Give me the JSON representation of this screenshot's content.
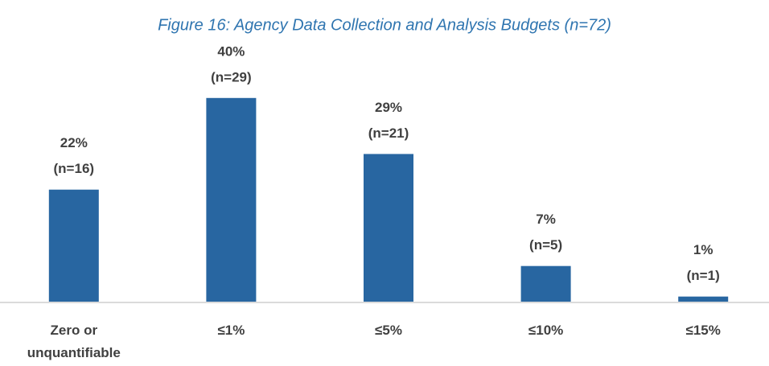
{
  "chart_data": {
    "type": "bar",
    "title": "Figure 16: Agency Data Collection and Analysis Budgets (n=72)",
    "categories": [
      "Zero or unquantifiable",
      "≤1%",
      "≤5%",
      "≤10%",
      "≤15%"
    ],
    "values": [
      22,
      40,
      29,
      7,
      1
    ],
    "value_labels": [
      "22%",
      "40%",
      "29%",
      "7%",
      "1%"
    ],
    "count_labels": [
      "(n=16)",
      "(n=29)",
      "(n=21)",
      "(n=5)",
      "(n=1)"
    ],
    "color": "#2866a1",
    "ylim": [
      0,
      45
    ]
  }
}
